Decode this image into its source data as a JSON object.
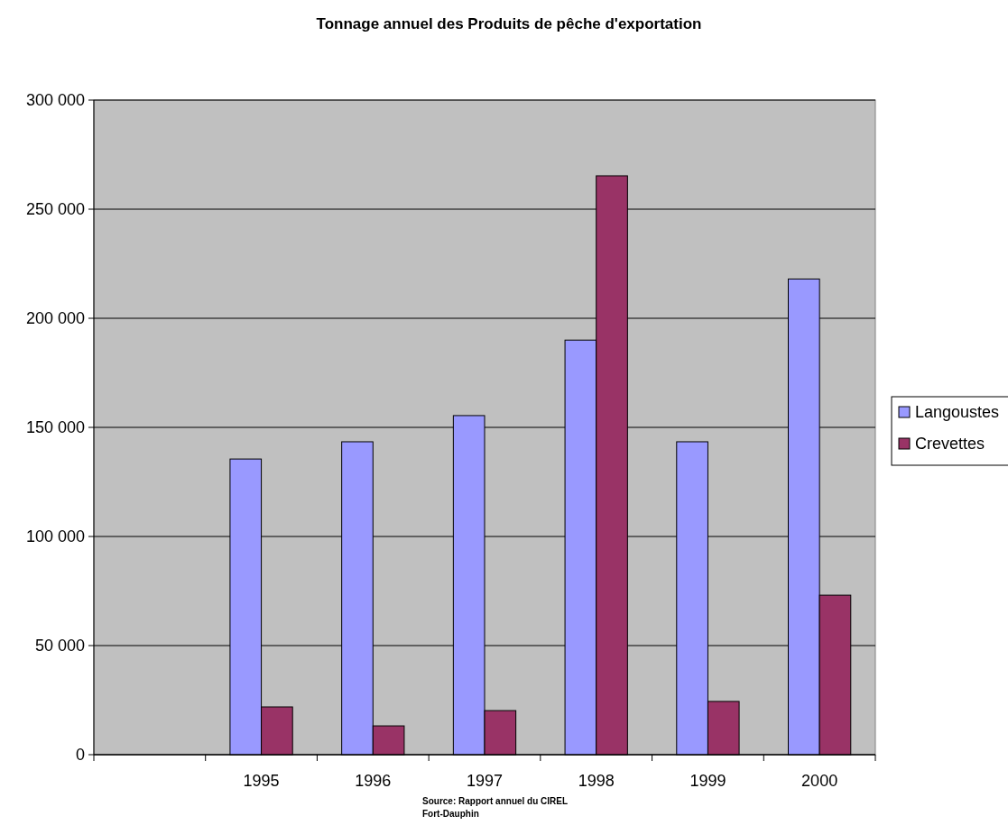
{
  "chart_data": {
    "type": "bar",
    "title": "Tonnage annuel des Produits de pêche d'exportation",
    "categories": [
      null,
      "1995",
      "1996",
      "1997",
      "1998",
      "1999",
      "2000"
    ],
    "series": [
      {
        "name": "Langoustes",
        "color": "#9999ff",
        "values": [
          null,
          135500,
          143400,
          155400,
          190000,
          143400,
          218000
        ]
      },
      {
        "name": "Crevettes",
        "color": "#993366",
        "values": [
          null,
          21900,
          13200,
          20200,
          265300,
          24400,
          73100
        ]
      }
    ],
    "ylim": [
      0,
      300000
    ],
    "yticks": [
      0,
      {
        "value": 50000,
        "label": "50 000"
      },
      {
        "value": 100000,
        "label": "100 000"
      },
      {
        "value": 150000,
        "label": "150 000"
      },
      {
        "value": 200000,
        "label": "200 000"
      },
      {
        "value": 250000,
        "label": "250 000"
      },
      {
        "value": 300000,
        "label": "300 000"
      }
    ],
    "grid": "y",
    "legend": "right",
    "annotations": [
      "Source: Rapport annuel du CIREL Fort-Dauphin"
    ]
  }
}
